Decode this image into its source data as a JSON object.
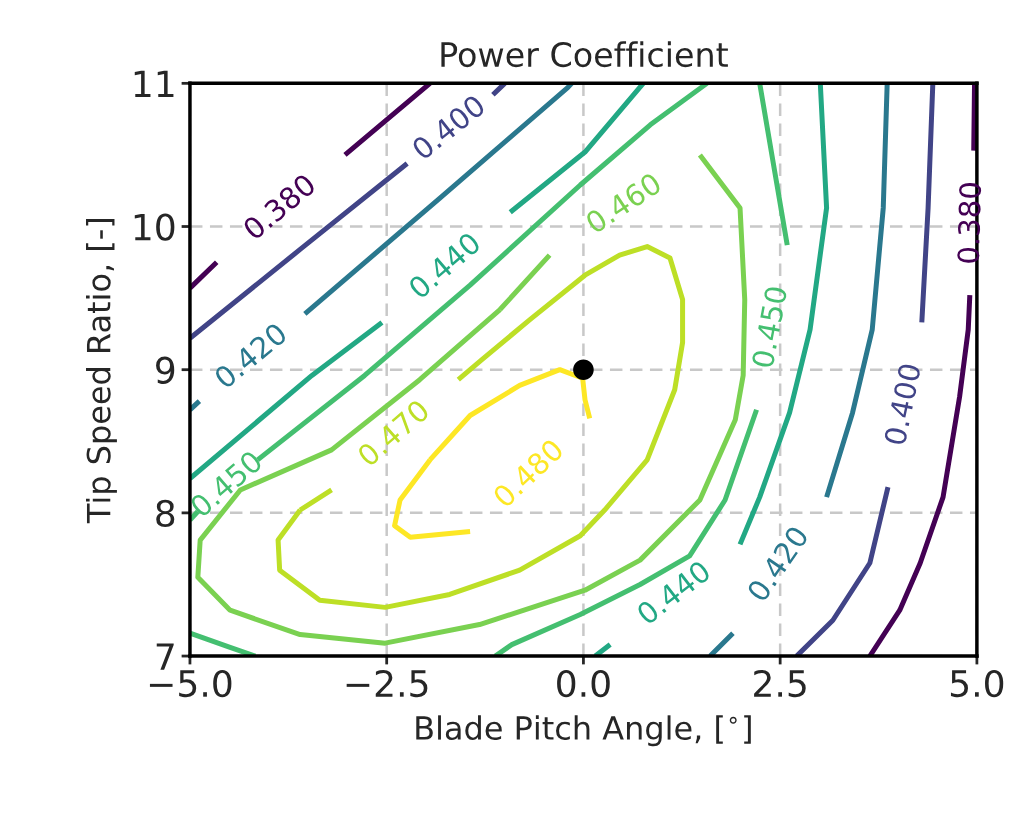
{
  "chart_data": {
    "type": "line",
    "title": "Power Coefficient",
    "xlabel": "Blade Pitch Angle, [$^{∘}$]",
    "ylabel": "Tip Speed Ratio, [-]",
    "xlim": [
      -5,
      5
    ],
    "xticks": [
      {
        "value": -5,
        "label": "−5.0"
      },
      {
        "value": -2.5,
        "label": "−2.5"
      },
      {
        "value": 0,
        "label": "0.0"
      },
      {
        "value": 2.5,
        "label": "2.5"
      },
      {
        "value": 5,
        "label": "5.0"
      }
    ],
    "ylim": [
      7,
      11
    ],
    "yticks": [
      7,
      8,
      9,
      10,
      11
    ],
    "grid": true,
    "line_style": "solid",
    "marker": "none",
    "series": [
      {
        "name": "0.380",
        "color": "#440154",
        "x": [
          -5.0,
          -4.66,
          null,
          -3.03,
          -1.95,
          null,
          null,
          4.97,
          4.96,
          null,
          4.91,
          4.89,
          4.78,
          4.57,
          4.28,
          4.02,
          3.64
        ],
        "values": [
          9.57,
          9.75,
          null,
          10.5,
          11.0,
          null,
          null,
          11.0,
          10.53,
          null,
          9.52,
          9.28,
          8.81,
          8.11,
          7.65,
          7.32,
          7.0
        ]
      },
      {
        "name": "0.400",
        "color": "#414487",
        "x": [
          -5.0,
          -3.6,
          -2.24,
          null,
          -1.15,
          -1.0,
          null,
          null,
          4.44,
          4.38,
          4.3,
          null,
          3.87,
          3.64,
          3.17,
          2.71
        ],
        "values": [
          9.22,
          9.84,
          10.44,
          null,
          10.92,
          11.0,
          null,
          null,
          11.0,
          10.13,
          9.33,
          null,
          8.18,
          7.65,
          7.25,
          7.0
        ]
      },
      {
        "name": "0.420",
        "color": "#2a788e",
        "x": [
          -5.0,
          -4.88,
          null,
          -3.54,
          -1.82,
          -0.2,
          -0.15,
          null,
          null,
          3.86,
          3.81,
          3.67,
          3.42,
          3.09,
          null,
          1.9,
          1.61
        ],
        "values": [
          8.72,
          8.78,
          null,
          9.39,
          10.2,
          10.97,
          11.0,
          null,
          null,
          11.0,
          10.13,
          9.28,
          8.7,
          8.11,
          null,
          7.16,
          7.0
        ]
      },
      {
        "name": "0.440",
        "color": "#22a884",
        "x": [
          -5.0,
          -3.45,
          -2.56,
          null,
          -0.93,
          0.02,
          0.76,
          null,
          null,
          3.01,
          3.09,
          2.88,
          2.62,
          2.24,
          1.99,
          null,
          0.34,
          0.15
        ],
        "values": [
          8.24,
          8.96,
          9.33,
          null,
          10.1,
          10.52,
          11.0,
          null,
          null,
          11.0,
          10.13,
          9.28,
          8.7,
          8.11,
          7.78,
          null,
          7.08,
          7.0
        ]
      },
      {
        "name": "0.450",
        "color": "#44bf70",
        "x": [
          -5.0,
          -4.9,
          null,
          -4.14,
          -2.78,
          -1.44,
          -0.04,
          0.85,
          1.57,
          null,
          null,
          2.24,
          2.59,
          null,
          2.2,
          1.8,
          1.35,
          0.72,
          -0.04,
          -0.91,
          -1.12,
          null,
          null,
          -5.0,
          -4.49,
          -4.17
        ],
        "values": [
          7.95,
          8.01,
          null,
          8.37,
          8.96,
          9.59,
          10.29,
          10.71,
          11.0,
          null,
          null,
          11.0,
          9.87,
          null,
          8.72,
          8.09,
          7.7,
          7.5,
          7.29,
          7.08,
          7.0,
          null,
          null,
          7.16,
          7.06,
          7.0
        ]
      },
      {
        "name": "0.460",
        "color": "#7ad151",
        "x": [
          -1.06,
          -0.43,
          null,
          1.48,
          1.99,
          2.05,
          2.03,
          1.93,
          1.48,
          0.72,
          0.02,
          -1.32,
          -2.52,
          -3.6,
          -4.49,
          -4.9,
          -4.87,
          -4.36,
          -3.2,
          -2.08,
          -1.06
        ],
        "values": [
          9.42,
          9.8,
          null,
          10.5,
          10.13,
          9.49,
          8.96,
          8.65,
          8.09,
          7.67,
          7.46,
          7.22,
          7.09,
          7.15,
          7.32,
          7.55,
          7.81,
          8.16,
          8.44,
          8.93,
          9.42
        ]
      },
      {
        "name": "0.470",
        "color": "#bddf26",
        "x": [
          -3.6,
          -3.2,
          null,
          -1.59,
          -1.29,
          -0.68,
          0.02,
          0.46,
          0.81,
          1.1,
          1.26,
          1.26,
          1.16,
          0.81,
          0.27,
          -0.04,
          -0.81,
          -1.7,
          -2.52,
          -3.35,
          -3.86,
          -3.88,
          -3.6
        ],
        "values": [
          8.02,
          8.16,
          null,
          8.93,
          9.07,
          9.35,
          9.66,
          9.8,
          9.86,
          9.78,
          9.49,
          9.19,
          8.86,
          8.37,
          8.02,
          7.84,
          7.6,
          7.43,
          7.34,
          7.39,
          7.6,
          7.81,
          8.02
        ]
      },
      {
        "name": "0.480",
        "color": "#fde725",
        "x": [
          -1.95,
          -2.33,
          -2.4,
          -2.2,
          -1.44,
          null,
          0.08,
          0.02,
          -0.01,
          -0.3,
          -0.81,
          -1.44,
          -1.95
        ],
        "values": [
          8.37,
          8.09,
          7.91,
          7.83,
          7.87,
          null,
          8.66,
          8.79,
          8.94,
          9.0,
          8.89,
          8.68,
          8.37
        ]
      },
      {
        "type": "scatter",
        "color": "#000000",
        "marker": "circle",
        "x": [
          0
        ],
        "values": [
          9
        ]
      }
    ]
  }
}
